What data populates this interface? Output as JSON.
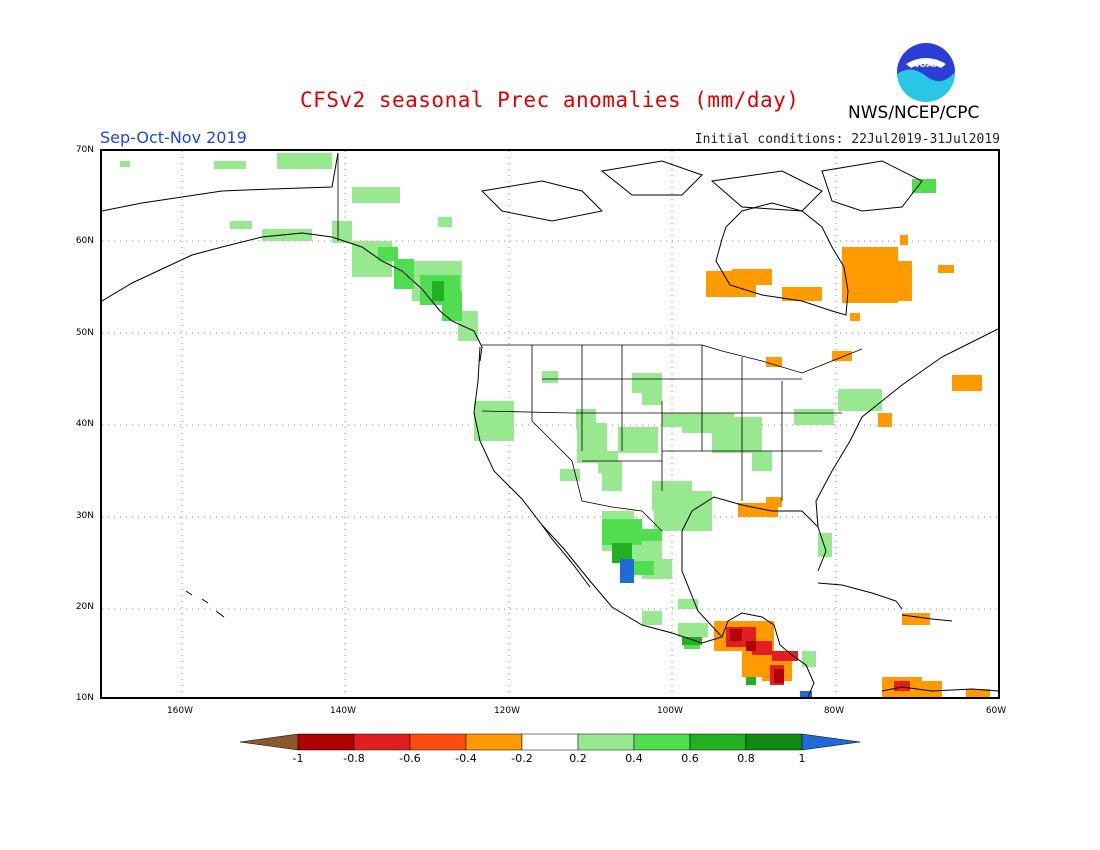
{
  "header": {
    "title": "CFSv2 seasonal Prec anomalies (mm/day)",
    "season": "Sep-Oct-Nov 2019",
    "initial_conditions": "Initial conditions: 22Jul2019-31Jul2019",
    "agency": "NWS/NCEP/CPC",
    "logo_text": "NOAA"
  },
  "map": {
    "lat_labels": [
      "70N",
      "60N",
      "50N",
      "40N",
      "30N",
      "20N",
      "10N"
    ],
    "lon_labels": [
      "160W",
      "140W",
      "120W",
      "100W",
      "80W",
      "60W"
    ],
    "extent": {
      "lon_min": -170,
      "lon_max": -60,
      "lat_min": 10,
      "lat_max": 70
    }
  },
  "legend": {
    "tick_labels": [
      "-1",
      "-0.8",
      "-0.6",
      "-0.4",
      "-0.2",
      "0.2",
      "0.4",
      "0.6",
      "0.8",
      "1"
    ],
    "colors": [
      "#8b5a2b",
      "#b00000",
      "#e02020",
      "#ff4a10",
      "#ff9a00",
      "#ffffff",
      "#98e890",
      "#50dd50",
      "#20b020",
      "#108a10",
      "#1e6bd6"
    ]
  }
}
